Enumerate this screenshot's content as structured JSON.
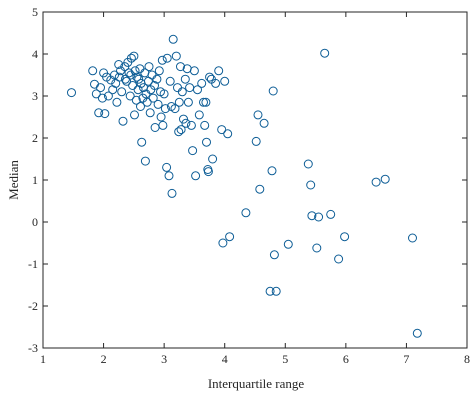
{
  "chart_data": {
    "type": "scatter",
    "title": "",
    "xlabel": "Interquartile range",
    "ylabel": "Median",
    "xlim": [
      1,
      8
    ],
    "ylim": [
      -3,
      5
    ],
    "xticks": [
      "1",
      "2",
      "3",
      "4",
      "5",
      "6",
      "7",
      "8"
    ],
    "yticks": [
      "-3",
      "-2",
      "-1",
      "0",
      "1",
      "2",
      "3",
      "4",
      "5"
    ],
    "grid": false,
    "legend": "none",
    "marker": "open-circle",
    "marker_color": "#0d5d96",
    "series": [
      {
        "values": [
          [
            1.47,
            3.08
          ],
          [
            1.82,
            3.6
          ],
          [
            1.85,
            3.28
          ],
          [
            1.88,
            3.05
          ],
          [
            1.92,
            2.6
          ],
          [
            1.95,
            3.2
          ],
          [
            1.98,
            2.95
          ],
          [
            2.0,
            3.55
          ],
          [
            2.02,
            2.58
          ],
          [
            2.05,
            3.45
          ],
          [
            2.08,
            3.0
          ],
          [
            2.12,
            3.38
          ],
          [
            2.15,
            3.15
          ],
          [
            2.18,
            3.5
          ],
          [
            2.2,
            3.3
          ],
          [
            2.22,
            2.85
          ],
          [
            2.25,
            3.75
          ],
          [
            2.26,
            3.45
          ],
          [
            2.28,
            3.6
          ],
          [
            2.3,
            3.1
          ],
          [
            2.32,
            2.4
          ],
          [
            2.35,
            3.7
          ],
          [
            2.36,
            3.4
          ],
          [
            2.38,
            3.35
          ],
          [
            2.4,
            3.8
          ],
          [
            2.42,
            3.55
          ],
          [
            2.44,
            3.0
          ],
          [
            2.45,
            3.5
          ],
          [
            2.46,
            3.9
          ],
          [
            2.48,
            3.25
          ],
          [
            2.5,
            3.95
          ],
          [
            2.51,
            2.55
          ],
          [
            2.52,
            3.6
          ],
          [
            2.54,
            2.9
          ],
          [
            2.55,
            3.45
          ],
          [
            2.57,
            3.15
          ],
          [
            2.58,
            3.4
          ],
          [
            2.6,
            3.65
          ],
          [
            2.61,
            2.75
          ],
          [
            2.62,
            3.3
          ],
          [
            2.63,
            1.9
          ],
          [
            2.65,
            2.95
          ],
          [
            2.66,
            3.2
          ],
          [
            2.68,
            3.55
          ],
          [
            2.69,
            1.45
          ],
          [
            2.7,
            3.05
          ],
          [
            2.72,
            2.85
          ],
          [
            2.74,
            3.35
          ],
          [
            2.75,
            3.7
          ],
          [
            2.77,
            2.6
          ],
          [
            2.78,
            3.15
          ],
          [
            2.8,
            3.5
          ],
          [
            2.82,
            2.95
          ],
          [
            2.84,
            3.25
          ],
          [
            2.85,
            2.25
          ],
          [
            2.88,
            3.4
          ],
          [
            2.9,
            2.8
          ],
          [
            2.92,
            3.6
          ],
          [
            2.94,
            3.1
          ],
          [
            2.95,
            2.5
          ],
          [
            2.97,
            3.85
          ],
          [
            2.98,
            2.3
          ],
          [
            3.0,
            3.05
          ],
          [
            3.02,
            2.7
          ],
          [
            3.04,
            1.3
          ],
          [
            3.05,
            3.9
          ],
          [
            3.08,
            1.1
          ],
          [
            3.1,
            3.35
          ],
          [
            3.12,
            2.75
          ],
          [
            3.13,
            0.68
          ],
          [
            3.15,
            4.35
          ],
          [
            3.18,
            2.7
          ],
          [
            3.2,
            3.95
          ],
          [
            3.22,
            3.2
          ],
          [
            3.24,
            2.15
          ],
          [
            3.25,
            2.85
          ],
          [
            3.27,
            3.7
          ],
          [
            3.28,
            2.2
          ],
          [
            3.3,
            3.1
          ],
          [
            3.32,
            2.45
          ],
          [
            3.35,
            3.4
          ],
          [
            3.36,
            2.35
          ],
          [
            3.38,
            3.65
          ],
          [
            3.4,
            2.85
          ],
          [
            3.42,
            3.2
          ],
          [
            3.45,
            2.3
          ],
          [
            3.47,
            1.7
          ],
          [
            3.5,
            3.6
          ],
          [
            3.52,
            1.1
          ],
          [
            3.55,
            3.15
          ],
          [
            3.58,
            2.55
          ],
          [
            3.62,
            3.3
          ],
          [
            3.65,
            2.85
          ],
          [
            3.67,
            2.3
          ],
          [
            3.69,
            2.85
          ],
          [
            3.7,
            1.9
          ],
          [
            3.72,
            1.25
          ],
          [
            3.73,
            1.2
          ],
          [
            3.75,
            3.45
          ],
          [
            3.78,
            3.4
          ],
          [
            3.8,
            1.5
          ],
          [
            3.85,
            3.3
          ],
          [
            3.9,
            3.6
          ],
          [
            3.95,
            2.2
          ],
          [
            3.97,
            -0.5
          ],
          [
            4.0,
            3.35
          ],
          [
            4.05,
            2.1
          ],
          [
            4.08,
            -0.35
          ],
          [
            4.35,
            0.22
          ],
          [
            4.52,
            1.92
          ],
          [
            4.55,
            2.55
          ],
          [
            4.58,
            0.78
          ],
          [
            4.65,
            2.35
          ],
          [
            4.75,
            -1.65
          ],
          [
            4.8,
            3.12
          ],
          [
            4.82,
            -0.78
          ],
          [
            4.85,
            -1.65
          ],
          [
            4.78,
            1.22
          ],
          [
            5.05,
            -0.53
          ],
          [
            5.38,
            1.38
          ],
          [
            5.42,
            0.88
          ],
          [
            5.44,
            0.15
          ],
          [
            5.52,
            -0.62
          ],
          [
            5.55,
            0.12
          ],
          [
            5.65,
            4.02
          ],
          [
            5.75,
            0.18
          ],
          [
            5.88,
            -0.88
          ],
          [
            5.98,
            -0.35
          ],
          [
            6.5,
            0.95
          ],
          [
            6.65,
            1.02
          ],
          [
            7.1,
            -0.38
          ],
          [
            7.18,
            -2.65
          ]
        ]
      }
    ]
  }
}
